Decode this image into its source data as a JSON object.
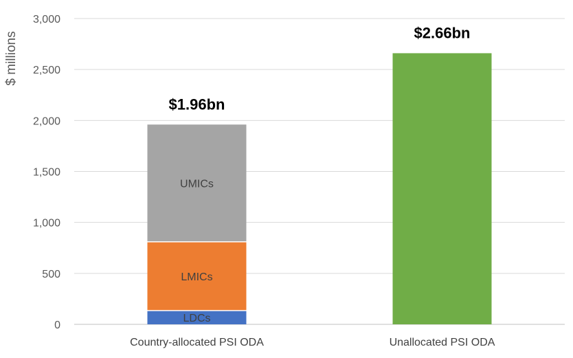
{
  "chart_data": {
    "type": "bar",
    "stacked": true,
    "ylabel": "$ millions",
    "ylim": [
      0,
      3000
    ],
    "yticks": [
      0,
      500,
      1000,
      1500,
      2000,
      2500,
      3000
    ],
    "ytick_labels": [
      "0",
      "500",
      "1,000",
      "1,500",
      "2,000",
      "2,500",
      "3,000"
    ],
    "grid": true,
    "categories": [
      "Country-allocated PSI ODA",
      "Unallocated PSI ODA"
    ],
    "bars": [
      {
        "category": "Country-allocated PSI ODA",
        "total_label": "$1.96bn",
        "segments": [
          {
            "label": "LDCs",
            "value": 135,
            "color": "#4472C4"
          },
          {
            "label": "LMICs",
            "value": 675,
            "color": "#ED7D31"
          },
          {
            "label": "UMICs",
            "value": 1150,
            "color": "#A5A5A5"
          }
        ]
      },
      {
        "category": "Unallocated PSI ODA",
        "total_label": "$2.66bn",
        "segments": [
          {
            "label": "",
            "value": 2660,
            "color": "#70AD47"
          }
        ]
      }
    ]
  }
}
